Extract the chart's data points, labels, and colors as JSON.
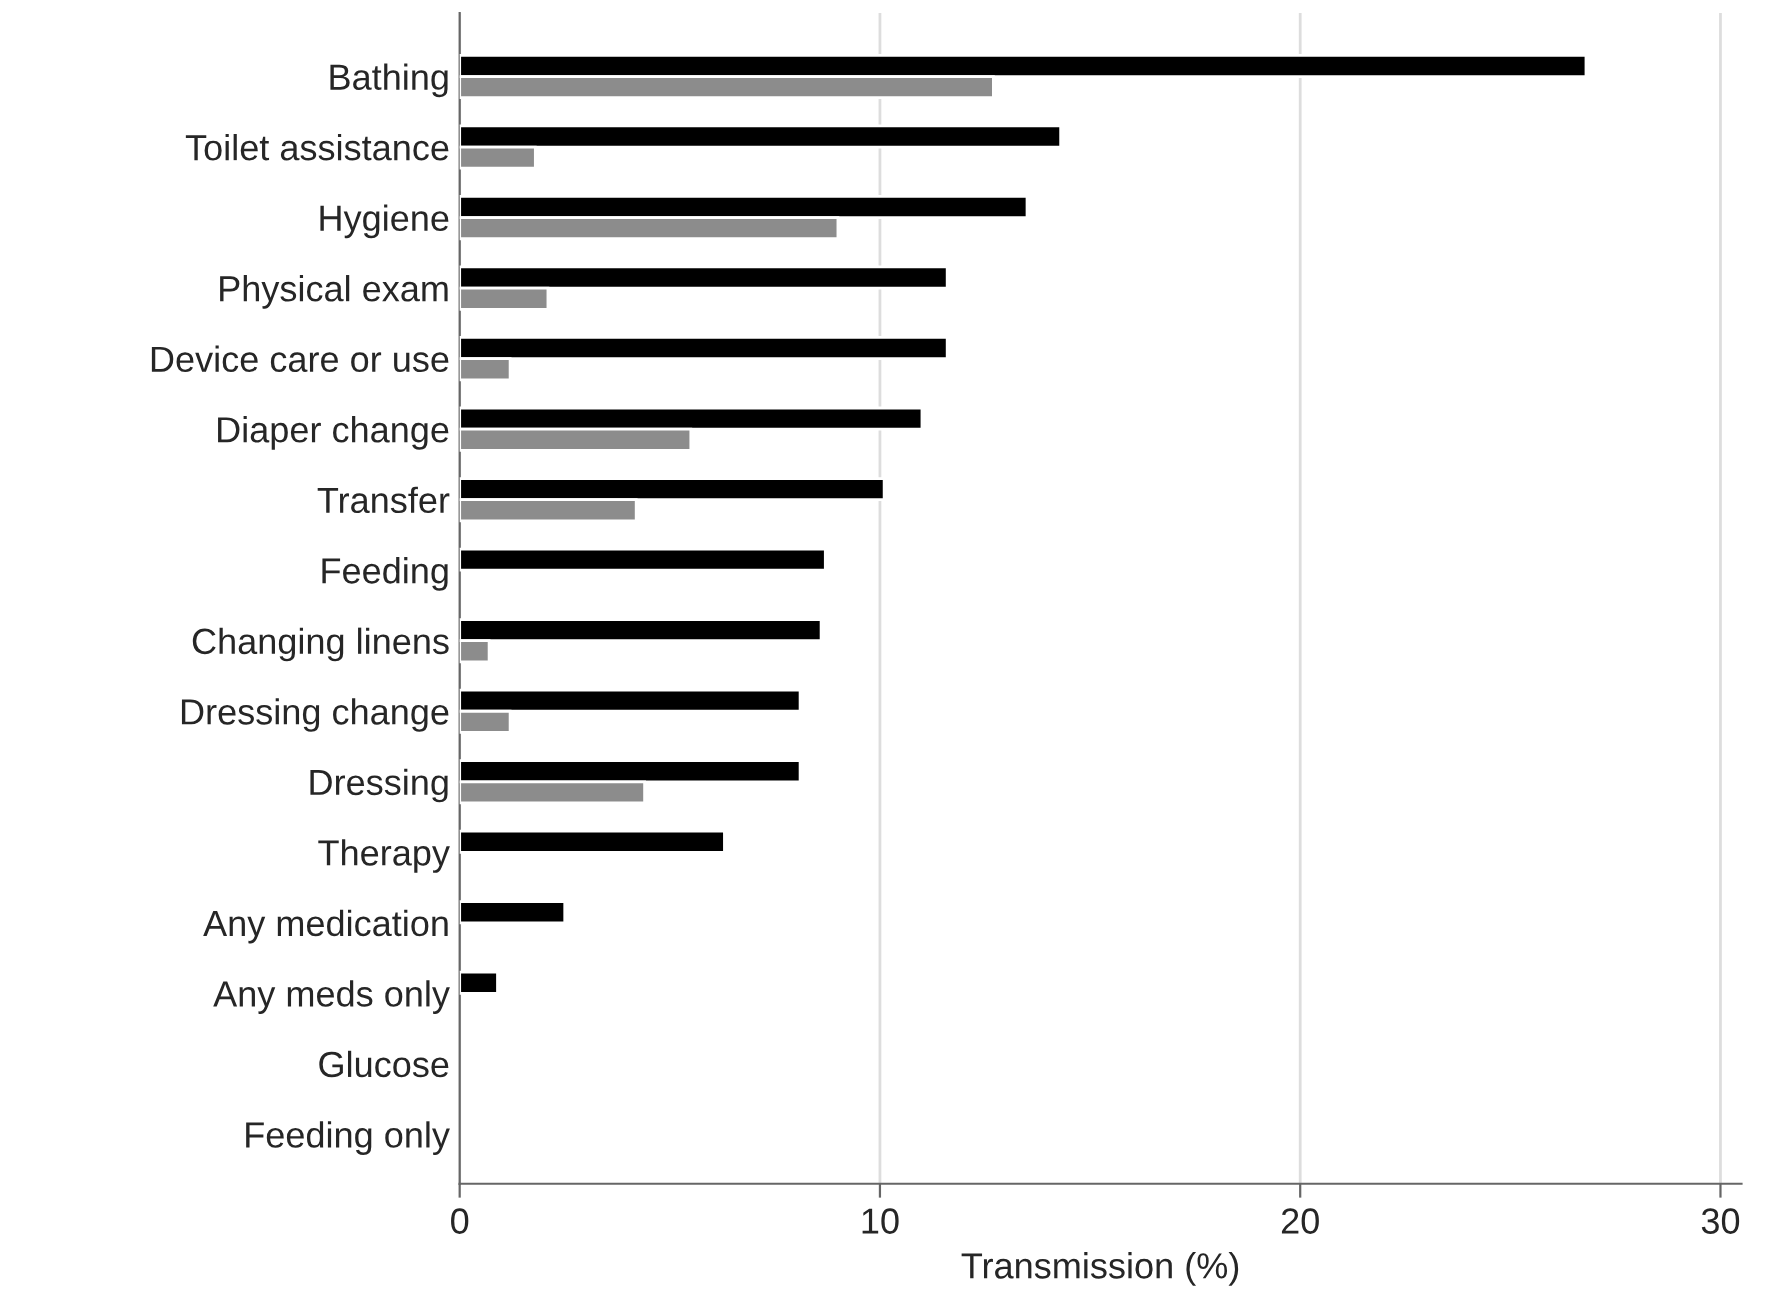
{
  "chart_data": {
    "type": "bar",
    "orientation": "horizontal",
    "xlabel": "Transmission (%)",
    "categories": [
      "Bathing",
      "Toilet assistance",
      "Hygiene",
      "Physical exam",
      "Device care or use",
      "Diaper change",
      "Transfer",
      "Feeding",
      "Changing linens",
      "Dressing change",
      "Dressing",
      "Therapy",
      "Any medication",
      "Any meds only",
      "Glucose",
      "Feeding only"
    ],
    "series": [
      {
        "color": "#000000",
        "values": [
          26.8,
          14.3,
          13.5,
          11.6,
          11.6,
          11.0,
          10.1,
          8.7,
          8.6,
          8.1,
          8.1,
          6.3,
          2.5,
          0.9,
          null,
          null
        ]
      },
      {
        "color": "#8c8c8c",
        "values": [
          12.7,
          1.8,
          9.0,
          2.1,
          1.2,
          5.5,
          4.2,
          null,
          0.7,
          1.2,
          4.4,
          null,
          null,
          null,
          null,
          null
        ]
      }
    ],
    "xlim": [
      0,
      30.5
    ],
    "xticks": [
      0,
      10,
      20,
      30
    ],
    "grid": "x"
  }
}
